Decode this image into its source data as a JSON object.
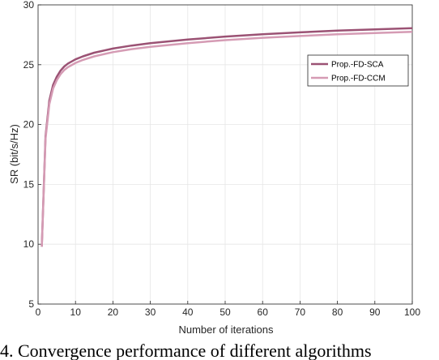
{
  "caption": "4. Convergence performance of different algorithms",
  "chart_data": {
    "type": "line",
    "title": "",
    "xlabel": "Number of iterations",
    "ylabel": "SR (bit/s/Hz)",
    "xlim": [
      0,
      100
    ],
    "ylim": [
      5,
      30
    ],
    "xticks": [
      0,
      10,
      20,
      30,
      40,
      50,
      60,
      70,
      80,
      90,
      100
    ],
    "yticks": [
      5,
      10,
      15,
      20,
      25,
      30
    ],
    "grid": true,
    "legend_position": "right",
    "series": [
      {
        "name": "Prop.-FD-SCA",
        "color": "#9b5274",
        "x": [
          1,
          2,
          3,
          4,
          5,
          6,
          7,
          8,
          10,
          12,
          15,
          20,
          25,
          30,
          40,
          50,
          60,
          70,
          80,
          90,
          100
        ],
        "y": [
          9.8,
          19.0,
          22.0,
          23.3,
          24.0,
          24.5,
          24.85,
          25.1,
          25.45,
          25.7,
          26.0,
          26.35,
          26.6,
          26.8,
          27.1,
          27.35,
          27.55,
          27.7,
          27.85,
          27.95,
          28.05
        ]
      },
      {
        "name": "Prop.-FD-CCM",
        "color": "#d59bb4",
        "x": [
          1,
          2,
          3,
          4,
          5,
          6,
          7,
          8,
          10,
          12,
          15,
          20,
          25,
          30,
          40,
          50,
          60,
          70,
          80,
          90,
          100
        ],
        "y": [
          9.8,
          18.8,
          21.7,
          23.0,
          23.7,
          24.2,
          24.55,
          24.8,
          25.15,
          25.4,
          25.7,
          26.05,
          26.3,
          26.5,
          26.8,
          27.05,
          27.25,
          27.4,
          27.55,
          27.65,
          27.75
        ]
      }
    ]
  }
}
